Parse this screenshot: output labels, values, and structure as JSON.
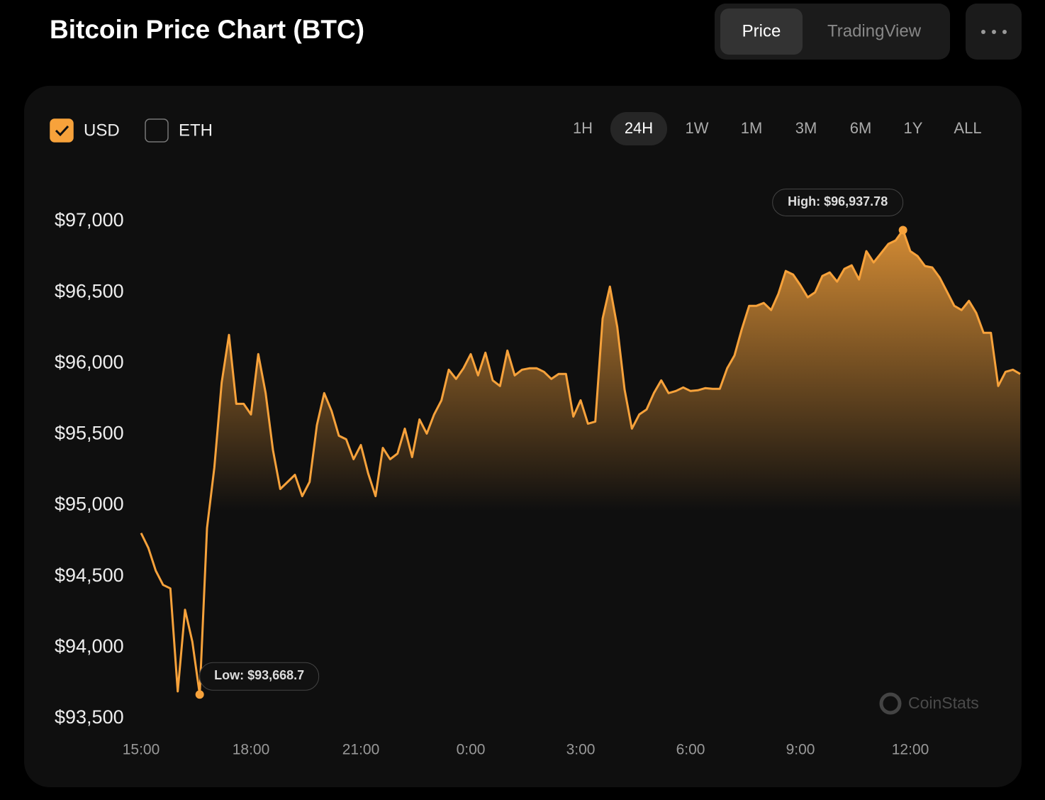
{
  "header": {
    "title": "Bitcoin Price Chart (BTC)",
    "tabs": [
      {
        "label": "Price",
        "active": true
      },
      {
        "label": "TradingView",
        "active": false
      }
    ]
  },
  "currency_options": [
    {
      "label": "USD",
      "checked": true
    },
    {
      "label": "ETH",
      "checked": false
    }
  ],
  "ranges": [
    {
      "label": "1H",
      "active": false
    },
    {
      "label": "24H",
      "active": true
    },
    {
      "label": "1W",
      "active": false
    },
    {
      "label": "1M",
      "active": false
    },
    {
      "label": "3M",
      "active": false
    },
    {
      "label": "6M",
      "active": false
    },
    {
      "label": "1Y",
      "active": false
    },
    {
      "label": "ALL",
      "active": false
    }
  ],
  "watermark": "CoinStats",
  "chart_data": {
    "type": "area",
    "color": "#f7a23b",
    "high_label": "High: $96,937.78",
    "low_label": "Low: $93,668.7",
    "x": [
      15,
      15.2,
      15.4,
      15.6,
      15.8,
      16,
      16.2,
      16.4,
      16.6,
      16.8,
      17,
      17.2,
      17.4,
      17.6,
      17.8,
      18,
      18.2,
      18.4,
      18.6,
      18.8,
      19,
      19.2,
      19.4,
      19.6,
      19.8,
      20,
      20.2,
      20.4,
      20.6,
      20.8,
      21,
      21.2,
      21.4,
      21.6,
      21.8,
      22,
      22.2,
      22.4,
      22.6,
      22.8,
      23,
      23.2,
      23.4,
      23.6,
      23.8,
      24,
      24.2,
      24.4,
      24.6,
      24.8,
      25,
      25.2,
      25.4,
      25.6,
      25.8,
      26,
      26.2,
      26.4,
      26.6,
      26.8,
      27,
      27.2,
      27.4,
      27.6,
      27.8,
      28,
      28.2,
      28.4,
      28.6,
      28.8,
      29,
      29.2,
      29.4,
      29.6,
      29.8,
      30,
      30.2,
      30.4,
      30.6,
      30.8,
      31,
      31.2,
      31.4,
      31.6,
      31.8,
      32,
      32.2,
      32.4,
      32.6,
      32.8,
      33,
      33.2,
      33.4,
      33.6,
      33.8,
      34,
      34.2,
      34.4,
      34.6,
      34.8,
      35,
      35.2,
      35.4,
      35.6,
      35.8,
      36,
      36.2,
      36.4,
      36.6,
      36.8,
      37,
      37.2,
      37.4,
      37.6,
      37.8,
      38,
      38.2,
      38.4,
      38.6,
      38.8,
      39
    ],
    "values": [
      94805,
      94700,
      94540,
      94440,
      94415,
      93690,
      94265,
      94040,
      93668.7,
      94840,
      95265,
      95865,
      96200,
      95715,
      95715,
      95640,
      96065,
      95790,
      95390,
      95115,
      95165,
      95215,
      95065,
      95165,
      95565,
      95790,
      95665,
      95490,
      95465,
      95325,
      95425,
      95225,
      95065,
      95405,
      95325,
      95365,
      95540,
      95340,
      95605,
      95505,
      95640,
      95740,
      95955,
      95890,
      95965,
      96065,
      95915,
      96075,
      95880,
      95840,
      96090,
      95915,
      95955,
      95965,
      95965,
      95940,
      95890,
      95925,
      95925,
      95625,
      95740,
      95575,
      95590,
      96315,
      96540,
      96255,
      95815,
      95540,
      95640,
      95675,
      95790,
      95880,
      95790,
      95805,
      95830,
      95805,
      95810,
      95825,
      95820,
      95820,
      95965,
      96055,
      96240,
      96405,
      96405,
      96425,
      96375,
      96490,
      96650,
      96625,
      96550,
      96465,
      96500,
      96615,
      96640,
      96575,
      96665,
      96690,
      96590,
      96790,
      96710,
      96775,
      96840,
      96865,
      96937.78,
      96790,
      96755,
      96685,
      96675,
      96605,
      96505,
      96405,
      96375,
      96440,
      96355,
      96215,
      96215,
      95840,
      95940,
      95955,
      95925
    ],
    "xlim": [
      15,
      39
    ],
    "xticks": [
      {
        "value": 15,
        "label": "15:00"
      },
      {
        "value": 18,
        "label": "18:00"
      },
      {
        "value": 21,
        "label": "21:00"
      },
      {
        "value": 24,
        "label": "0:00"
      },
      {
        "value": 27,
        "label": "3:00"
      },
      {
        "value": 30,
        "label": "6:00"
      },
      {
        "value": 33,
        "label": "9:00"
      },
      {
        "value": 36,
        "label": "12:00"
      }
    ],
    "ylim": [
      93500,
      97000
    ],
    "yticks": [
      {
        "value": 93500,
        "label": "$93,500"
      },
      {
        "value": 94000,
        "label": "$94,000"
      },
      {
        "value": 94500,
        "label": "$94,500"
      },
      {
        "value": 95000,
        "label": "$95,000"
      },
      {
        "value": 95500,
        "label": "$95,500"
      },
      {
        "value": 96000,
        "label": "$96,000"
      },
      {
        "value": 96500,
        "label": "$96,500"
      },
      {
        "value": 97000,
        "label": "$97,000"
      }
    ],
    "grid": false
  }
}
